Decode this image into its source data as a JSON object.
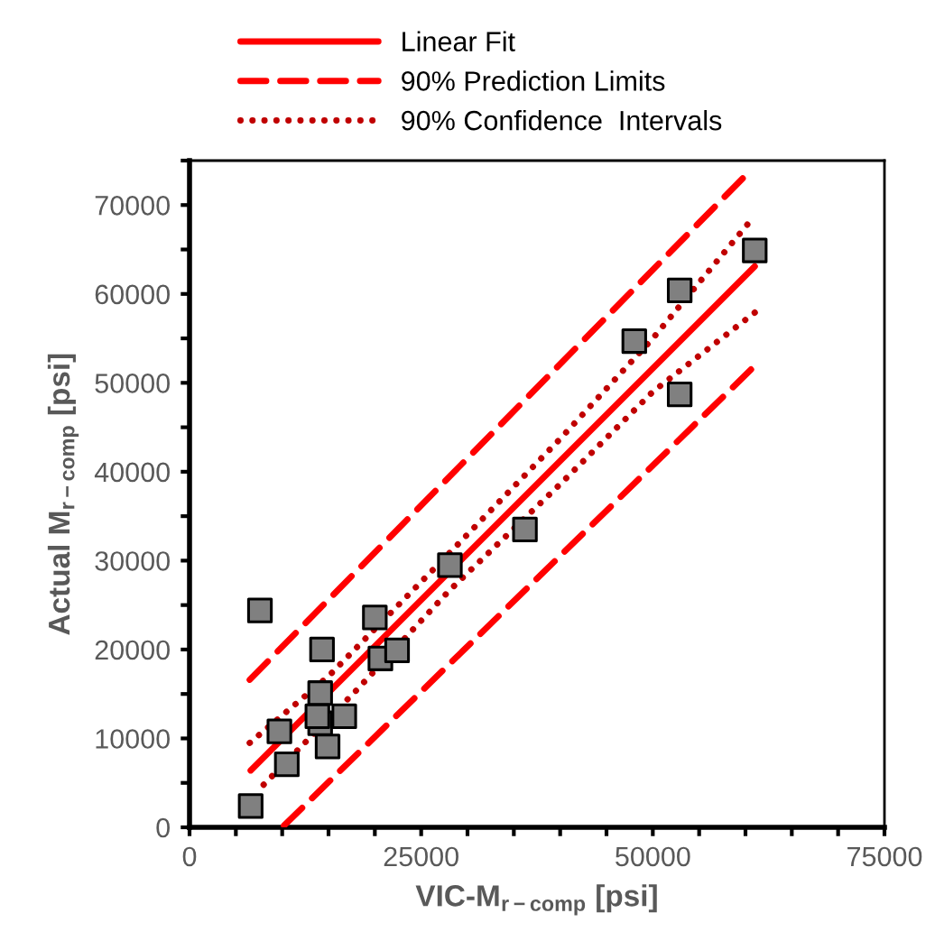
{
  "chart_data": {
    "type": "scatter",
    "xlabel": "VIC-M$_{r−comp}$ [psi]",
    "ylabel": "Actual M$_{r−comp}$ [psi]",
    "xlim": [
      0,
      75000
    ],
    "ylim": [
      0,
      75000
    ],
    "xticks": [
      0,
      {
        "value": 5000,
        "label": null
      },
      {
        "value": 10000,
        "label": null
      },
      {
        "value": 15000,
        "label": null
      },
      {
        "value": 20000,
        "label": null
      },
      25000,
      {
        "value": 30000,
        "label": null
      },
      {
        "value": 35000,
        "label": null
      },
      {
        "value": 40000,
        "label": null
      },
      {
        "value": 45000,
        "label": null
      },
      50000,
      {
        "value": 55000,
        "label": null
      },
      {
        "value": 60000,
        "label": null
      },
      {
        "value": 65000,
        "label": null
      },
      {
        "value": 70000,
        "label": null
      },
      75000
    ],
    "yticks": [
      0,
      {
        "value": 5000,
        "label": null
      },
      10000,
      {
        "value": 15000,
        "label": null
      },
      20000,
      {
        "value": 25000,
        "label": null
      },
      30000,
      {
        "value": 35000,
        "label": null
      },
      40000,
      {
        "value": 45000,
        "label": null
      },
      50000,
      {
        "value": 55000,
        "label": null
      },
      60000,
      {
        "value": 65000,
        "label": null
      },
      70000,
      {
        "value": 75000,
        "label": null
      }
    ],
    "grid": false,
    "legend": "top",
    "series": [
      {
        "marker": "square",
        "color": "#808080",
        "x": [
          6600,
          7600,
          9700,
          10500,
          14100,
          14100,
          13800,
          14300,
          14900,
          16700,
          20000,
          20600,
          22400,
          28100,
          36200,
          48000,
          52900,
          52900,
          61000
        ],
        "values": [
          2400,
          24400,
          10800,
          7100,
          15100,
          11700,
          12500,
          20000,
          9100,
          12500,
          23600,
          19000,
          19900,
          29500,
          33500,
          54700,
          60400,
          48700,
          64900
        ]
      },
      {
        "type": "line",
        "name": "Linear Fit",
        "color": "#ff0000",
        "line_style": "solid",
        "x": [
          6600,
          61000
        ],
        "values": [
          6400,
          63100
        ]
      },
      {
        "type": "line",
        "name": "90% Prediction Limits",
        "color": "#ff0000",
        "line_style": "dashed",
        "x": [
          6500,
          59700
        ],
        "values": [
          16600,
          73000
        ]
      },
      {
        "type": "line",
        "color": "#ff0000",
        "line_style": "dashed",
        "x": [
          10200,
          60600
        ],
        "values": [
          200,
          51500
        ]
      },
      {
        "type": "line",
        "name": "90% Confidence  Intervals",
        "color": "#c00000",
        "line_style": "dotted",
        "x": [
          6500,
          15000,
          28000,
          40000,
          50000,
          60200
        ],
        "values": [
          9500,
          17000,
          30800,
          43700,
          55000,
          67800
        ]
      },
      {
        "type": "line",
        "color": "#c00000",
        "line_style": "dotted",
        "x": [
          8000,
          18000,
          28000,
          40000,
          50000,
          61000
        ],
        "values": [
          4800,
          15400,
          26600,
          38600,
          49000,
          57900
        ]
      }
    ]
  }
}
